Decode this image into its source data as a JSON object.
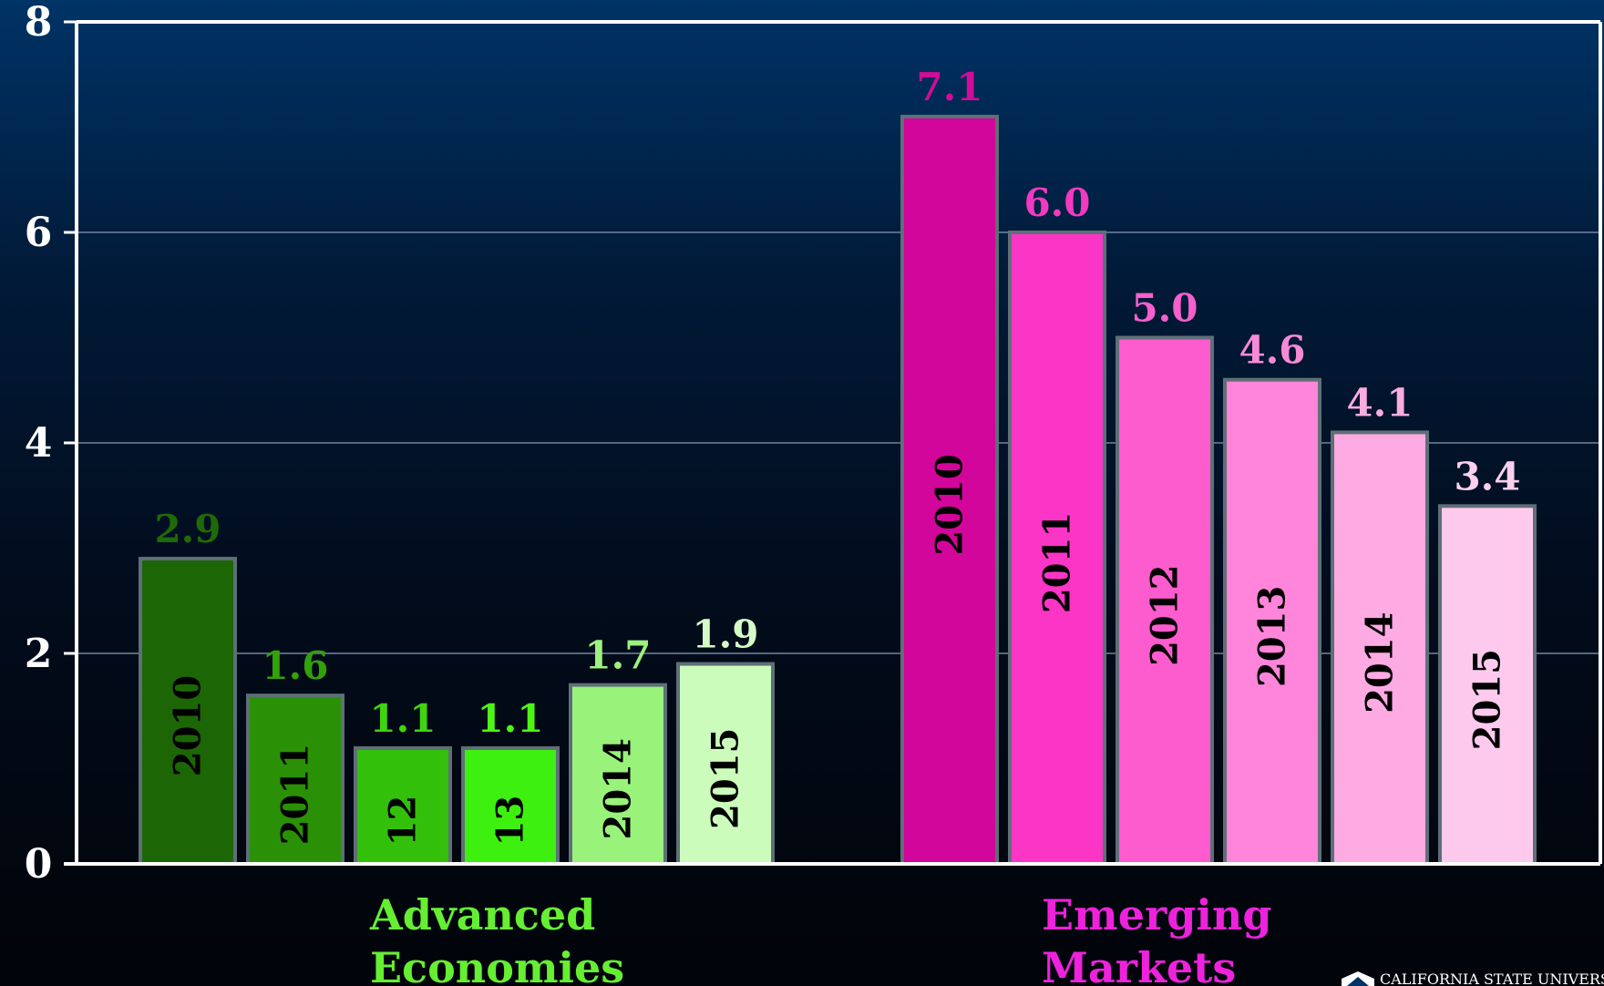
{
  "chart_data": {
    "type": "bar",
    "ylim": [
      0,
      8
    ],
    "yticks": [
      0,
      2,
      4,
      6,
      8
    ],
    "grid": true,
    "groups": [
      {
        "name_lines": [
          "Advanced",
          "Economies"
        ],
        "color": "#66ee33",
        "bars": [
          {
            "year": "2010",
            "value": 2.9,
            "label": "2.9",
            "fill": "#1d6606",
            "label_color": "#1f6a08"
          },
          {
            "year": "2011",
            "value": 1.6,
            "label": "1.6",
            "fill": "#2a9005",
            "label_color": "#33a10a"
          },
          {
            "year": "12",
            "value": 1.1,
            "label": "1.1",
            "fill": "#33c00a",
            "label_color": "#3fd40f"
          },
          {
            "year": "13",
            "value": 1.1,
            "label": "1.1",
            "fill": "#3ef010",
            "label_color": "#4cf516"
          },
          {
            "year": "2014",
            "value": 1.7,
            "label": "1.7",
            "fill": "#99f27a",
            "label_color": "#9cf27e"
          },
          {
            "year": "2015",
            "value": 1.9,
            "label": "1.9",
            "fill": "#ccfcbc",
            "label_color": "#d4fcc6"
          }
        ]
      },
      {
        "name_lines": [
          "Emerging",
          "Markets"
        ],
        "color": "#ee22dd",
        "bars": [
          {
            "year": "2010",
            "value": 7.1,
            "label": "7.1",
            "fill": "#d2069a",
            "label_color": "#d00c98"
          },
          {
            "year": "2011",
            "value": 6.0,
            "label": "6.0",
            "fill": "#fb35c5",
            "label_color": "#f13ac0"
          },
          {
            "year": "2012",
            "value": 5.0,
            "label": "5.0",
            "fill": "#fd5ccf",
            "label_color": "#f560cc"
          },
          {
            "year": "2013",
            "value": 4.6,
            "label": "4.6",
            "fill": "#fe85d9",
            "label_color": "#f78ad6"
          },
          {
            "year": "2014",
            "value": 4.1,
            "label": "4.1",
            "fill": "#feaae3",
            "label_color": "#f8ace0"
          },
          {
            "year": "2015",
            "value": 3.4,
            "label": "3.4",
            "fill": "#fdcaee",
            "label_color": "#fbd0ee"
          }
        ]
      }
    ]
  },
  "footer": {
    "institution": "CALIFORNIA STATE UNIVERSITY"
  }
}
